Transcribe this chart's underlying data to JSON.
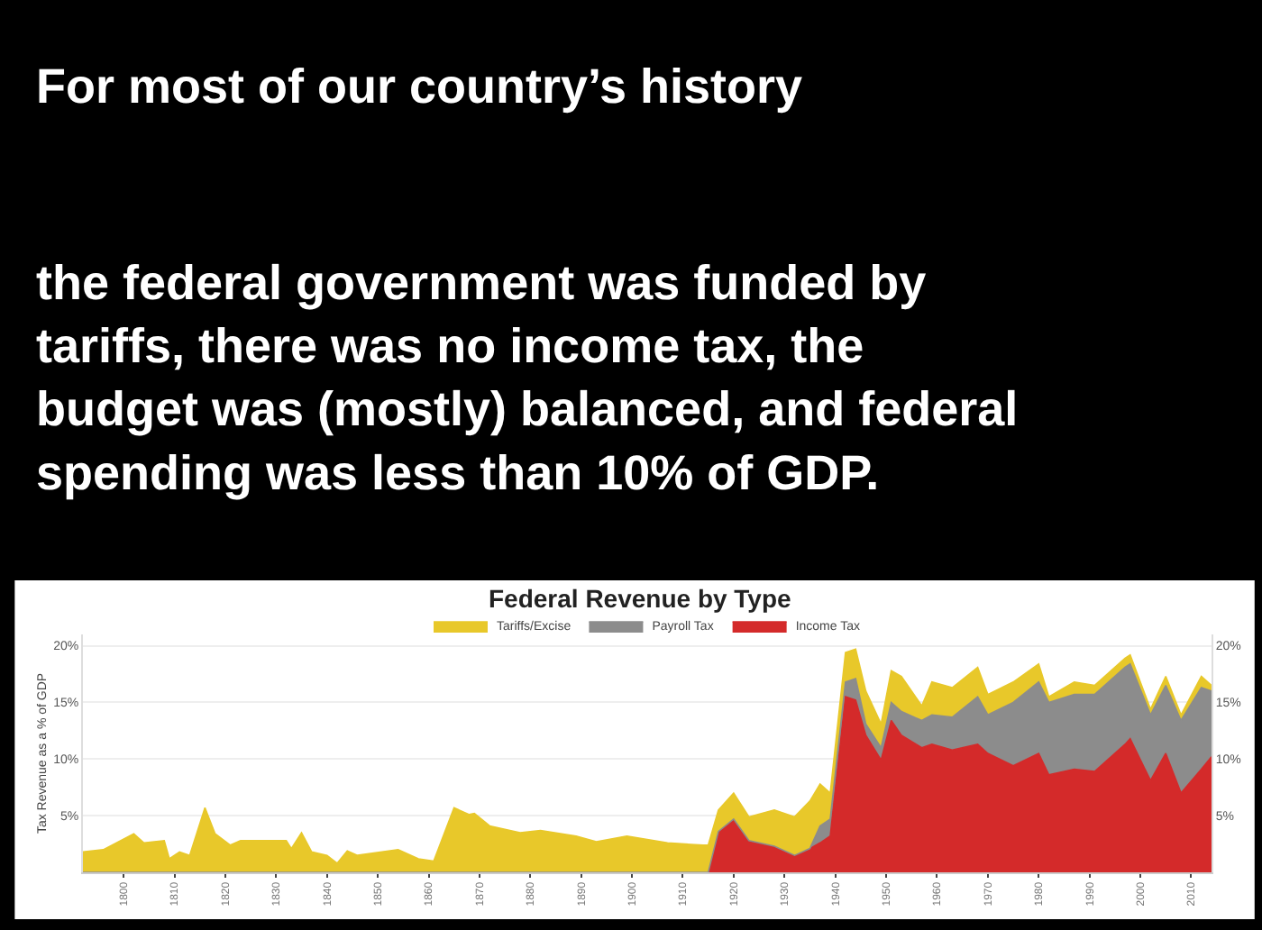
{
  "chart_data": {
    "type": "area",
    "stacked": true,
    "title": "Federal Revenue by Type",
    "ylabel": "Tax Revenue as a % of GDP",
    "annotations": [
      "For most of our country’s history",
      "the federal government was funded by tariffs, there was no income tax, the budget was (mostly) balanced, and federal spending was less than 10% of GDP."
    ],
    "x": [
      1792,
      1796,
      1802,
      1804,
      1808,
      1809,
      1811,
      1813,
      1816,
      1818,
      1821,
      1823,
      1832,
      1833,
      1835,
      1837,
      1840,
      1842,
      1844,
      1846,
      1854,
      1858,
      1861,
      1865,
      1868,
      1869,
      1872,
      1878,
      1882,
      1889,
      1893,
      1899,
      1907,
      1914,
      1915,
      1917,
      1920,
      1923,
      1928,
      1932,
      1935,
      1937,
      1939,
      1942,
      1944,
      1946,
      1949,
      1951,
      1953,
      1957,
      1959,
      1963,
      1968,
      1970,
      1975,
      1980,
      1982,
      1987,
      1991,
      1997,
      1998,
      2002,
      2005,
      2008,
      2012,
      2014
    ],
    "series": [
      {
        "name": "Income Tax",
        "color": "#d42a2a",
        "values": [
          0,
          0,
          0,
          0,
          0,
          0,
          0,
          0,
          0,
          0,
          0,
          0,
          0,
          0,
          0,
          0,
          0,
          0,
          0,
          0,
          0,
          0,
          0,
          0,
          0,
          0,
          0,
          0,
          0,
          0,
          0,
          0,
          0,
          0,
          0,
          3.6,
          4.7,
          2.8,
          2.3,
          1.5,
          2.1,
          2.6,
          3.2,
          15.5,
          15.2,
          12.1,
          9.9,
          13.4,
          12.1,
          11.0,
          11.3,
          10.8,
          11.3,
          10.5,
          9.4,
          10.5,
          8.6,
          9.1,
          8.9,
          11.3,
          11.8,
          8.1,
          10.5,
          7.0,
          9.1,
          10.2
        ]
      },
      {
        "name": "Payroll Tax",
        "color": "#8c8c8c",
        "values": [
          0,
          0,
          0,
          0,
          0,
          0,
          0,
          0,
          0,
          0,
          0,
          0,
          0,
          0,
          0,
          0,
          0,
          0,
          0,
          0,
          0,
          0,
          0,
          0,
          0,
          0,
          0,
          0,
          0,
          0,
          0,
          0,
          0,
          0,
          0,
          0,
          0,
          0,
          0,
          0,
          0,
          1.5,
          1.5,
          1.3,
          1.9,
          1.0,
          1.1,
          1.6,
          2.1,
          2.4,
          2.6,
          2.9,
          4.2,
          3.4,
          5.6,
          6.3,
          6.4,
          6.6,
          6.8,
          6.8,
          6.6,
          5.8,
          6.0,
          6.4,
          7.2,
          5.8
        ]
      },
      {
        "name": "Tariffs/Excise",
        "color": "#e8c82a",
        "values": [
          1.8,
          2.0,
          3.4,
          2.6,
          2.8,
          1.2,
          1.8,
          1.5,
          5.7,
          3.4,
          2.4,
          2.8,
          2.8,
          2.1,
          3.5,
          1.8,
          1.5,
          0.8,
          1.9,
          1.5,
          2.0,
          1.2,
          1.0,
          5.7,
          5.1,
          5.2,
          4.1,
          3.5,
          3.7,
          3.2,
          2.7,
          3.2,
          2.6,
          2.4,
          2.4,
          1.9,
          2.3,
          2.1,
          3.2,
          3.4,
          4.2,
          3.7,
          2.3,
          2.6,
          2.6,
          2.9,
          2.1,
          2.8,
          3.1,
          1.3,
          2.9,
          2.6,
          2.6,
          1.8,
          1.8,
          1.6,
          0.5,
          1.1,
          0.8,
          0.8,
          0.8,
          0.5,
          0.8,
          0.5,
          1.0,
          0.5
        ]
      }
    ],
    "xlim": [
      1792,
      2014
    ],
    "ylim": [
      0,
      21
    ],
    "yticks": [
      {
        "value": 5,
        "label": "5%"
      },
      {
        "value": 10,
        "label": "10%"
      },
      {
        "value": 15,
        "label": "15%"
      },
      {
        "value": 20,
        "label": "20%"
      }
    ],
    "y2lim": [
      0,
      21
    ],
    "y2ticks": [
      {
        "value": 5,
        "label": "5%"
      },
      {
        "value": 10,
        "label": "10%"
      },
      {
        "value": 15,
        "label": "15%"
      },
      {
        "value": 20,
        "label": "20%"
      }
    ],
    "xticks": [
      1800,
      1810,
      1820,
      1830,
      1840,
      1850,
      1860,
      1870,
      1880,
      1890,
      1900,
      1910,
      1920,
      1930,
      1940,
      1950,
      1960,
      1970,
      1980,
      1990,
      2000,
      2010
    ],
    "grid": "y",
    "legend": "top"
  }
}
